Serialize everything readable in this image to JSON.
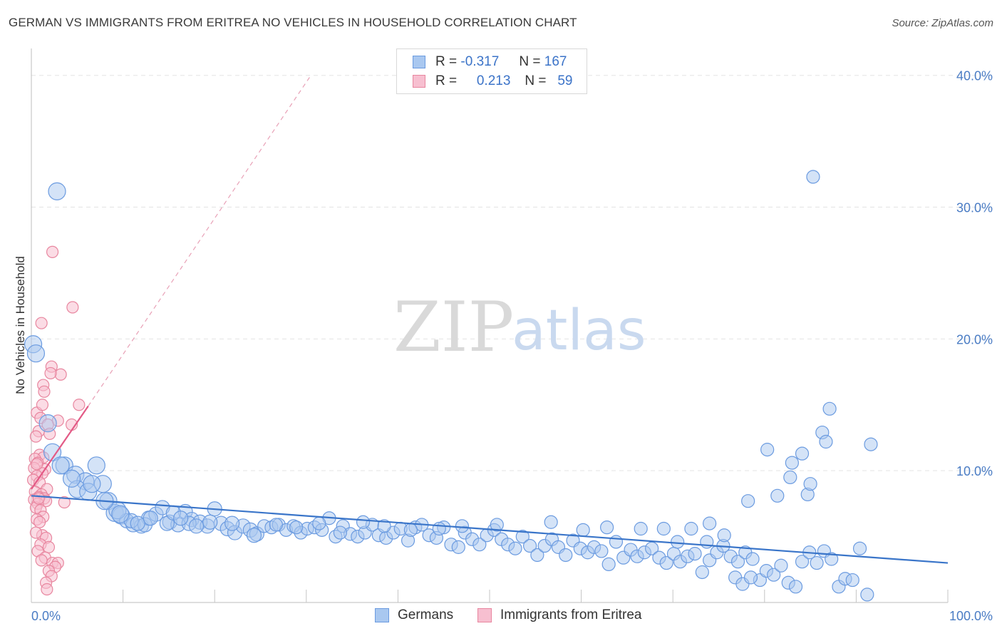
{
  "header": {
    "title": "GERMAN VS IMMIGRANTS FROM ERITREA NO VEHICLES IN HOUSEHOLD CORRELATION CHART",
    "source": "Source: ZipAtlas.com"
  },
  "watermark": {
    "zip": "ZIP",
    "atlas": "atlas"
  },
  "legend": {
    "rows": [
      {
        "r_label": "R =",
        "r_value": "-0.317",
        "n_label": "N =",
        "n_value": "167",
        "color": "#a9c8f0",
        "stroke": "#6b9be0"
      },
      {
        "r_label": "R =",
        "r_value": "0.213",
        "n_label": "N =",
        "n_value": "59",
        "color": "#f7bfd0",
        "stroke": "#e8869f"
      }
    ]
  },
  "bottom_legend": {
    "germans": "Germans",
    "eritrea": "Immigrants from Eritrea"
  },
  "chart_data": {
    "type": "scatter",
    "title": "GERMAN VS IMMIGRANTS FROM ERITREA NO VEHICLES IN HOUSEHOLD CORRELATION CHART",
    "xlabel": "",
    "ylabel": "No Vehicles in Household",
    "xlim": [
      0,
      100
    ],
    "ylim": [
      0,
      41.5
    ],
    "x_tick_labels": [
      "0.0%",
      "100.0%"
    ],
    "y_ticks": [
      10,
      20,
      30,
      40
    ],
    "y_tick_labels": [
      "10.0%",
      "20.0%",
      "30.0%",
      "40.0%"
    ],
    "grid": true,
    "legend_position": "top-center",
    "colors": {
      "germans": "#6b9be0",
      "germans_fill": "#a9c8f0",
      "eritrea": "#e8869f",
      "eritrea_fill": "#f7bfd0",
      "germans_line": "#3a75c9",
      "eritrea_line": "#e35a86"
    },
    "series": [
      {
        "name": "Germans",
        "trend": {
          "x": [
            0,
            100
          ],
          "y": [
            8.1,
            3.0
          ]
        },
        "points": [
          [
            2.8,
            31.2
          ],
          [
            0.2,
            19.6
          ],
          [
            0.5,
            18.9
          ],
          [
            1.8,
            13.6
          ],
          [
            2.3,
            11.4
          ],
          [
            3.6,
            10.4
          ],
          [
            7.1,
            10.4
          ],
          [
            4.8,
            9.7
          ],
          [
            5.9,
            9.2
          ],
          [
            7.8,
            9.0
          ],
          [
            5.0,
            8.6
          ],
          [
            6.2,
            8.4
          ],
          [
            8.4,
            7.7
          ],
          [
            9.1,
            6.8
          ],
          [
            9.8,
            6.6
          ],
          [
            10.4,
            6.2
          ],
          [
            11.1,
            5.9
          ],
          [
            12.0,
            5.8
          ],
          [
            12.8,
            6.4
          ],
          [
            13.6,
            6.7
          ],
          [
            14.3,
            7.2
          ],
          [
            15.1,
            6.1
          ],
          [
            16.0,
            5.9
          ],
          [
            16.8,
            6.9
          ],
          [
            17.5,
            6.3
          ],
          [
            18.4,
            6.1
          ],
          [
            19.2,
            5.8
          ],
          [
            20.0,
            7.1
          ],
          [
            20.7,
            6.0
          ],
          [
            21.4,
            5.6
          ],
          [
            22.2,
            5.3
          ],
          [
            23.1,
            5.8
          ],
          [
            23.9,
            5.5
          ],
          [
            24.6,
            5.2
          ],
          [
            25.4,
            5.8
          ],
          [
            26.2,
            5.7
          ],
          [
            27.0,
            5.9
          ],
          [
            27.8,
            5.5
          ],
          [
            28.6,
            5.8
          ],
          [
            29.4,
            5.3
          ],
          [
            30.1,
            5.6
          ],
          [
            30.9,
            5.7
          ],
          [
            31.7,
            5.5
          ],
          [
            32.5,
            6.4
          ],
          [
            33.2,
            5.0
          ],
          [
            34.0,
            5.8
          ],
          [
            34.8,
            5.2
          ],
          [
            35.6,
            5.0
          ],
          [
            36.4,
            5.3
          ],
          [
            37.2,
            5.9
          ],
          [
            37.9,
            5.1
          ],
          [
            38.7,
            4.9
          ],
          [
            39.5,
            5.3
          ],
          [
            40.3,
            5.6
          ],
          [
            41.1,
            4.7
          ],
          [
            41.9,
            5.7
          ],
          [
            42.6,
            5.9
          ],
          [
            43.4,
            5.1
          ],
          [
            44.2,
            4.9
          ],
          [
            45.0,
            5.7
          ],
          [
            45.8,
            4.4
          ],
          [
            46.6,
            4.2
          ],
          [
            47.3,
            5.3
          ],
          [
            48.1,
            4.8
          ],
          [
            48.9,
            4.4
          ],
          [
            49.7,
            5.1
          ],
          [
            50.5,
            5.5
          ],
          [
            51.3,
            4.8
          ],
          [
            52.0,
            4.4
          ],
          [
            52.8,
            4.1
          ],
          [
            53.6,
            5.0
          ],
          [
            54.4,
            4.3
          ],
          [
            55.2,
            3.6
          ],
          [
            56.0,
            4.3
          ],
          [
            56.8,
            4.8
          ],
          [
            57.5,
            4.2
          ],
          [
            58.3,
            3.6
          ],
          [
            59.1,
            4.7
          ],
          [
            59.9,
            4.1
          ],
          [
            60.7,
            3.8
          ],
          [
            61.4,
            4.2
          ],
          [
            62.2,
            3.9
          ],
          [
            63.0,
            2.9
          ],
          [
            63.8,
            4.6
          ],
          [
            64.6,
            3.4
          ],
          [
            65.4,
            4.0
          ],
          [
            66.1,
            3.5
          ],
          [
            66.9,
            3.8
          ],
          [
            67.7,
            4.1
          ],
          [
            68.5,
            3.4
          ],
          [
            69.3,
            3.0
          ],
          [
            70.1,
            3.7
          ],
          [
            70.8,
            3.1
          ],
          [
            71.6,
            3.5
          ],
          [
            72.4,
            3.7
          ],
          [
            73.2,
            2.3
          ],
          [
            74.0,
            3.2
          ],
          [
            74.8,
            3.8
          ],
          [
            75.5,
            4.3
          ],
          [
            76.3,
            3.5
          ],
          [
            77.1,
            3.1
          ],
          [
            77.9,
            3.8
          ],
          [
            78.7,
            3.3
          ],
          [
            79.5,
            1.7
          ],
          [
            80.2,
            2.4
          ],
          [
            81.0,
            2.1
          ],
          [
            81.8,
            2.8
          ],
          [
            82.6,
            1.5
          ],
          [
            83.4,
            1.2
          ],
          [
            84.1,
            3.1
          ],
          [
            84.9,
            3.8
          ],
          [
            85.7,
            3.0
          ],
          [
            86.5,
            3.9
          ],
          [
            87.3,
            3.3
          ],
          [
            88.1,
            1.2
          ],
          [
            88.8,
            1.8
          ],
          [
            89.6,
            1.7
          ],
          [
            90.4,
            4.1
          ],
          [
            91.2,
            0.6
          ],
          [
            76.8,
            1.9
          ],
          [
            77.6,
            1.4
          ],
          [
            78.5,
            1.9
          ],
          [
            73.7,
            4.6
          ],
          [
            69.0,
            5.6
          ],
          [
            70.5,
            4.6
          ],
          [
            72.0,
            5.6
          ],
          [
            66.5,
            5.6
          ],
          [
            62.8,
            5.7
          ],
          [
            56.7,
            6.1
          ],
          [
            60.2,
            5.5
          ],
          [
            50.8,
            5.9
          ],
          [
            47.0,
            5.8
          ],
          [
            44.5,
            5.6
          ],
          [
            41.4,
            5.5
          ],
          [
            38.5,
            5.8
          ],
          [
            36.2,
            6.1
          ],
          [
            33.7,
            5.3
          ],
          [
            31.4,
            6.0
          ],
          [
            28.9,
            5.7
          ],
          [
            26.7,
            5.9
          ],
          [
            24.3,
            5.1
          ],
          [
            21.9,
            6.0
          ],
          [
            19.5,
            6.1
          ],
          [
            17.2,
            6.0
          ],
          [
            14.8,
            6.0
          ],
          [
            12.4,
            5.9
          ],
          [
            10.9,
            6.2
          ],
          [
            9.4,
            7.0
          ],
          [
            8.0,
            7.7
          ],
          [
            6.6,
            9.0
          ],
          [
            4.4,
            9.4
          ],
          [
            3.2,
            10.4
          ],
          [
            9.7,
            6.7
          ],
          [
            11.6,
            6.0
          ],
          [
            13.0,
            6.4
          ],
          [
            15.5,
            6.8
          ],
          [
            18.0,
            5.8
          ],
          [
            16.3,
            6.4
          ],
          [
            86.3,
            12.9
          ],
          [
            84.1,
            11.3
          ],
          [
            83.0,
            10.6
          ],
          [
            80.3,
            11.6
          ],
          [
            82.8,
            9.5
          ],
          [
            84.7,
            8.2
          ],
          [
            85.0,
            9.0
          ],
          [
            86.7,
            12.2
          ],
          [
            78.2,
            7.7
          ],
          [
            81.4,
            8.1
          ],
          [
            74.0,
            6.0
          ],
          [
            75.6,
            5.1
          ],
          [
            85.3,
            32.3
          ],
          [
            87.1,
            14.7
          ],
          [
            91.6,
            12.0
          ]
        ]
      },
      {
        "name": "Immigrants from Eritrea",
        "trend": {
          "x": [
            0,
            6.2
          ],
          "y": [
            8.6,
            14.9
          ]
        },
        "trend_extended": {
          "x": [
            6.2,
            30.5
          ],
          "y": [
            14.9,
            40.0
          ]
        },
        "points": [
          [
            2.3,
            26.6
          ],
          [
            4.5,
            22.4
          ],
          [
            1.1,
            21.2
          ],
          [
            2.2,
            17.9
          ],
          [
            3.2,
            17.3
          ],
          [
            2.1,
            17.4
          ],
          [
            1.3,
            16.5
          ],
          [
            1.4,
            16.0
          ],
          [
            5.2,
            15.0
          ],
          [
            0.6,
            14.4
          ],
          [
            1.0,
            14.0
          ],
          [
            2.9,
            13.8
          ],
          [
            1.8,
            13.5
          ],
          [
            4.4,
            13.5
          ],
          [
            0.8,
            13.0
          ],
          [
            0.5,
            12.6
          ],
          [
            0.9,
            11.2
          ],
          [
            1.3,
            11.0
          ],
          [
            0.4,
            10.9
          ],
          [
            0.7,
            10.6
          ],
          [
            1.5,
            10.1
          ],
          [
            0.3,
            10.2
          ],
          [
            1.2,
            9.8
          ],
          [
            0.6,
            9.6
          ],
          [
            0.2,
            9.3
          ],
          [
            0.9,
            9.1
          ],
          [
            1.7,
            8.6
          ],
          [
            0.4,
            8.4
          ],
          [
            1.1,
            8.2
          ],
          [
            0.8,
            8.0
          ],
          [
            1.4,
            7.9
          ],
          [
            0.3,
            7.8
          ],
          [
            1.6,
            7.7
          ],
          [
            0.7,
            7.5
          ],
          [
            3.6,
            7.6
          ],
          [
            0.5,
            7.2
          ],
          [
            1.0,
            7.0
          ],
          [
            1.3,
            6.5
          ],
          [
            0.6,
            6.3
          ],
          [
            0.9,
            6.1
          ],
          [
            1.2,
            5.1
          ],
          [
            0.5,
            5.3
          ],
          [
            1.6,
            4.9
          ],
          [
            1.0,
            4.4
          ],
          [
            1.9,
            4.2
          ],
          [
            0.7,
            3.9
          ],
          [
            1.5,
            3.4
          ],
          [
            1.1,
            3.2
          ],
          [
            2.3,
            3.0
          ],
          [
            2.9,
            3.0
          ],
          [
            2.6,
            2.7
          ],
          [
            1.9,
            2.4
          ],
          [
            2.2,
            2.0
          ],
          [
            1.6,
            1.5
          ],
          [
            1.7,
            1.0
          ],
          [
            0.6,
            10.5
          ],
          [
            2.0,
            12.8
          ],
          [
            1.2,
            15.0
          ],
          [
            0.8,
            7.9
          ]
        ]
      }
    ]
  }
}
